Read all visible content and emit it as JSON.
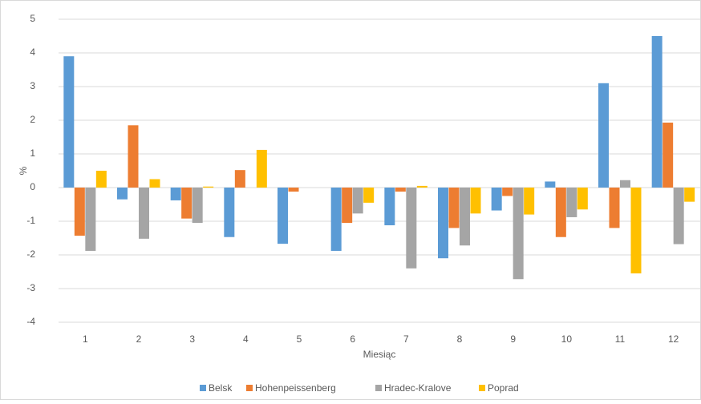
{
  "chart_data": {
    "type": "bar",
    "y_label": "%",
    "x_label": "Miesiąc",
    "categories": [
      "1",
      "2",
      "3",
      "4",
      "5",
      "6",
      "7",
      "8",
      "9",
      "10",
      "11",
      "12"
    ],
    "series": [
      {
        "name": "Belsk",
        "color": "#5b9bd5",
        "values": [
          3.9,
          -0.35,
          -0.38,
          -1.47,
          -1.67,
          -1.88,
          -1.12,
          -2.1,
          -0.68,
          0.18,
          3.1,
          4.5
        ]
      },
      {
        "name": "Hohenpeissenberg",
        "color": "#ed7d31",
        "values": [
          -1.43,
          1.85,
          -0.92,
          0.52,
          -0.12,
          -1.05,
          -0.12,
          -1.2,
          -0.25,
          -1.47,
          -1.2,
          1.93
        ]
      },
      {
        "name": "Hradec-Kralove",
        "color": "#a5a5a5",
        "values": [
          -1.88,
          -1.52,
          -1.05,
          0,
          0,
          -0.77,
          -2.4,
          -1.72,
          -2.72,
          -0.88,
          0.22,
          -1.68
        ]
      },
      {
        "name": "Poprad",
        "color": "#ffc000",
        "values": [
          0.5,
          0.25,
          0.03,
          1.12,
          0,
          -0.45,
          0.05,
          -0.77,
          -0.8,
          -0.65,
          -2.55,
          -0.42
        ]
      }
    ],
    "ylim": [
      -4,
      5
    ],
    "yticks": [
      -4,
      -3,
      -2,
      -1,
      0,
      1,
      2,
      3,
      4,
      5
    ],
    "grid": true,
    "legend": "bottom"
  }
}
